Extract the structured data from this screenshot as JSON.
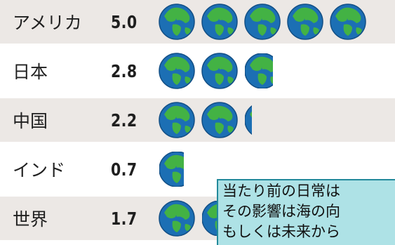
{
  "chart_data": {
    "type": "bar",
    "categories": [
      "アメリカ",
      "日本",
      "中国",
      "インド",
      "世界"
    ],
    "values": [
      5.0,
      2.8,
      2.2,
      0.7,
      1.7
    ],
    "value_labels": [
      "5.0",
      "2.8",
      "2.2",
      "0.7",
      "1.7"
    ],
    "icon": "earth-globe-icon",
    "title": "",
    "xlabel": "",
    "ylabel": ""
  },
  "callout": {
    "lines": [
      "当たり前の日常は",
      "その影響は海の向",
      "もしくは未来から"
    ]
  },
  "colors": {
    "row_shade": "#ece8e5",
    "ocean": "#1c6fb4",
    "land": "#43b244",
    "callout_bg": "#aee2e6",
    "callout_border": "#238a9b"
  }
}
